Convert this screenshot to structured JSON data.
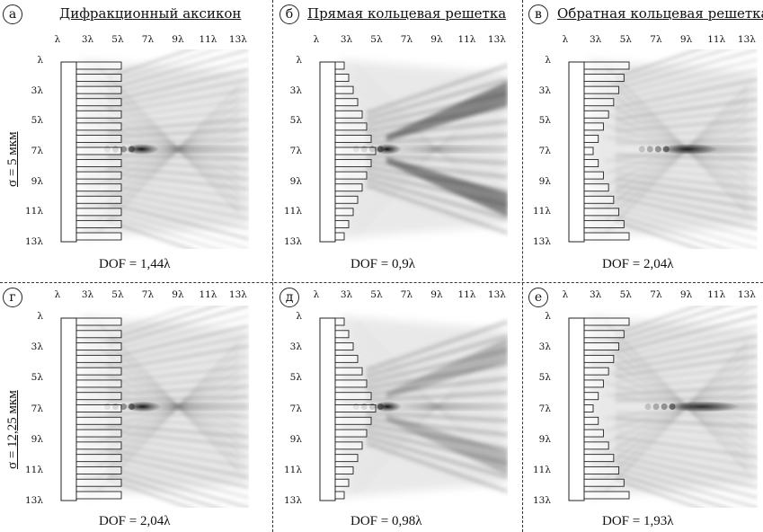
{
  "figure": {
    "top_tick_labels": [
      "λ",
      "3λ",
      "5λ",
      "7λ",
      "9λ",
      "11λ",
      "13λ"
    ],
    "left_tick_labels": [
      "λ",
      "3λ",
      "5λ",
      "7λ",
      "9λ",
      "11λ",
      "13λ"
    ],
    "row_labels": [
      "σ = 5 мкм",
      "σ = 12,25 мкм"
    ],
    "panels": [
      {
        "letter": "а",
        "title": "Дифракционный аксикон",
        "dof": "DOF = 1,44λ"
      },
      {
        "letter": "б",
        "title": "Прямая кольцевая решетка",
        "dof": "DOF = 0,9λ"
      },
      {
        "letter": "в",
        "title": "Обратная кольцевая решетка",
        "dof": "DOF = 2,04λ"
      },
      {
        "letter": "г",
        "title": "",
        "dof": "DOF = 2,04λ"
      },
      {
        "letter": "д",
        "title": "",
        "dof": "DOF = 0,98λ"
      },
      {
        "letter": "е",
        "title": "",
        "dof": "DOF = 1,93λ"
      }
    ]
  }
}
